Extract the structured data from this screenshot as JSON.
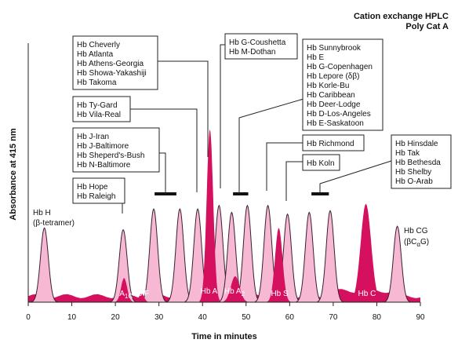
{
  "chart_data": {
    "type": "line",
    "title": [
      "Cation exchange HPLC",
      "Poly Cat A"
    ],
    "xlabel": "Time in minutes",
    "ylabel": "Absorbance at 415 nm",
    "xlim": [
      0,
      90
    ],
    "xticks": [
      0,
      10,
      20,
      30,
      40,
      50,
      60,
      70,
      80,
      90
    ],
    "colors": {
      "primary": "#d5105f",
      "variant": "#f7b8d4",
      "outline": "#3a2030"
    },
    "series": [
      {
        "role": "primary",
        "peaks": [
          {
            "label": "Hb A1C",
            "x": 22.0,
            "height": 0.14
          },
          {
            "label": "Hb F",
            "x": 26.0,
            "height": 0.05
          },
          {
            "label": "Hb A",
            "x": 41.7,
            "height": 1.0
          },
          {
            "label": "Hb A2",
            "x": 47.5,
            "height": 0.15
          },
          {
            "label": "Hb S",
            "x": 57.5,
            "height": 0.43
          },
          {
            "label": "Hb C",
            "x": 77.5,
            "height": 0.57
          }
        ]
      },
      {
        "role": "variant",
        "peaks": [
          {
            "x": 3.7,
            "height": 0.43
          },
          {
            "x": 21.8,
            "height": 0.42
          },
          {
            "x": 28.8,
            "height": 0.54
          },
          {
            "x": 34.8,
            "height": 0.54
          },
          {
            "x": 38.9,
            "height": 0.54
          },
          {
            "x": 43.8,
            "height": 0.56
          },
          {
            "x": 46.7,
            "height": 0.52
          },
          {
            "x": 50.3,
            "height": 0.56
          },
          {
            "x": 55.0,
            "height": 0.56
          },
          {
            "x": 59.5,
            "height": 0.51
          },
          {
            "x": 64.5,
            "height": 0.52
          },
          {
            "x": 69.3,
            "height": 0.53
          },
          {
            "x": 84.7,
            "height": 0.44
          }
        ]
      }
    ],
    "range_bars": [
      {
        "x": [
          29.0,
          34.0
        ]
      },
      {
        "x": [
          47.0,
          50.5
        ]
      },
      {
        "x": [
          65.0,
          69.0
        ]
      }
    ],
    "annotations": [
      {
        "lines": [
          "Hb Cheverly",
          "Hb Atlanta",
          "Hb Athens-Georgia",
          "Hb Showa-Yakashiji",
          "Hb Takoma"
        ],
        "points_to_x": 41.3
      },
      {
        "lines": [
          "Hb G-Coushetta",
          "Hb M-Dothan"
        ],
        "points_to_x": 44.0
      },
      {
        "lines": [
          "Hb Sunnybrook",
          "Hb E",
          "Hb G-Copenhagen",
          "Hb Lepore (δβ)",
          "Hb Korle-Bu",
          "Hb Caribbean",
          "Hb Deer-Lodge",
          "Hb D-Los-Angeles",
          "Hb E-Saskatoon"
        ],
        "points_to_x": 48.8
      },
      {
        "lines": [
          "Hb Ty-Gard",
          "Hb Vila-Real"
        ],
        "points_to_x": 39.0
      },
      {
        "lines": [
          "Hb J-Iran",
          "Hb J-Baltimore",
          "Hb Sheperd's-Bush",
          "Hb N-Baltimore"
        ],
        "points_to_x": 31.5
      },
      {
        "lines": [
          "Hb Hope",
          "Hb Raleigh"
        ],
        "points_to_x": 21.8
      },
      {
        "lines": [
          "Hb Richmond"
        ],
        "points_to_x": 55.0
      },
      {
        "lines": [
          "Hb Koln"
        ],
        "points_to_x": 59.5
      },
      {
        "lines": [
          "Hb Hinsdale",
          "Hb Tak",
          "Hb Bethesda",
          "Hb Shelby",
          "Hb O-Arab"
        ],
        "points_to_x": 67.0
      },
      {
        "lines": [
          "Hb H",
          "(β-tetramer)"
        ],
        "points_to_x": 3.7
      }
    ],
    "cg_label": {
      "text": "Hb CG",
      "sub_open": "(βC",
      "sub_alpha": "α",
      "sub_g": "G)"
    }
  }
}
